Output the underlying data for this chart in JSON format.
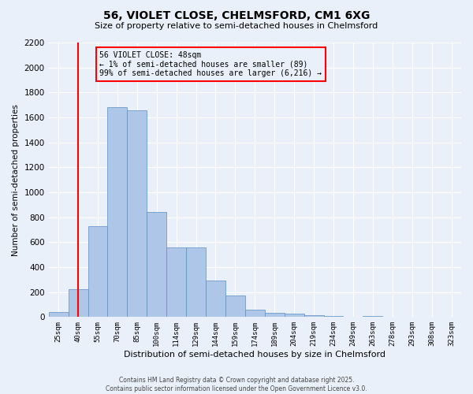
{
  "title": "56, VIOLET CLOSE, CHELMSFORD, CM1 6XG",
  "subtitle": "Size of property relative to semi-detached houses in Chelmsford",
  "xlabel": "Distribution of semi-detached houses by size in Chelmsford",
  "ylabel": "Number of semi-detached properties",
  "categories": [
    "25sqm",
    "40sqm",
    "55sqm",
    "70sqm",
    "85sqm",
    "100sqm",
    "114sqm",
    "129sqm",
    "144sqm",
    "159sqm",
    "174sqm",
    "189sqm",
    "204sqm",
    "219sqm",
    "234sqm",
    "249sqm",
    "263sqm",
    "278sqm",
    "293sqm",
    "308sqm",
    "323sqm"
  ],
  "values": [
    40,
    225,
    730,
    1680,
    1660,
    845,
    560,
    560,
    295,
    175,
    60,
    35,
    25,
    15,
    10,
    0,
    10,
    0,
    0,
    0,
    0
  ],
  "bar_color": "#aec6e8",
  "bar_edge_color": "#5b8fc2",
  "vline_color": "red",
  "vline_position": 1.5,
  "annotation_title": "56 VIOLET CLOSE: 48sqm",
  "annotation_line1": "← 1% of semi-detached houses are smaller (89)",
  "annotation_line2": "99% of semi-detached houses are larger (6,216) →",
  "annotation_box_color": "red",
  "ylim": [
    0,
    2200
  ],
  "yticks": [
    0,
    200,
    400,
    600,
    800,
    1000,
    1200,
    1400,
    1600,
    1800,
    2000,
    2200
  ],
  "footer_line1": "Contains HM Land Registry data © Crown copyright and database right 2025.",
  "footer_line2": "Contains public sector information licensed under the Open Government Licence v3.0.",
  "bg_color": "#eaf0fa",
  "grid_color": "#ffffff"
}
